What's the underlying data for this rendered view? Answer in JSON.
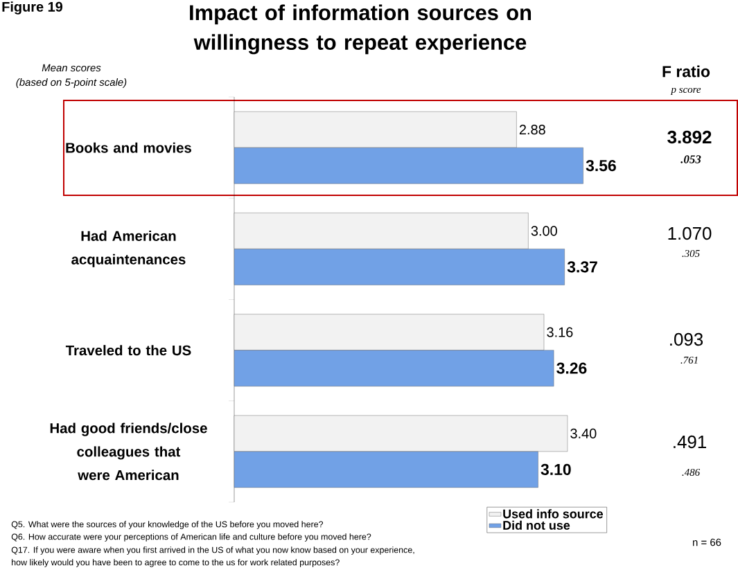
{
  "chart_data": {
    "type": "bar",
    "orientation": "horizontal",
    "title": "Impact of information sources on willingness to repeat experience",
    "categories": [
      "Books and movies",
      "Had American acquaintenances",
      "Traveled to the US",
      "Had good friends/close colleagues that were American"
    ],
    "series": [
      {
        "name": "Used info source",
        "color": "#f2f2f2",
        "values": [
          2.88,
          3.0,
          3.16,
          3.4
        ],
        "value_labels": [
          "2.88",
          "3.00",
          "3.16",
          "3.40"
        ]
      },
      {
        "name": "Did not use",
        "color": "#71a1e6",
        "values": [
          3.56,
          3.37,
          3.26,
          3.1
        ],
        "value_labels": [
          "3.56",
          "3.37",
          "3.26",
          "3.10"
        ]
      }
    ],
    "legend": "bottom",
    "annotations": [
      "Figure 19",
      "Mean scores",
      "(based on 5-point scale)",
      "F ratio",
      "p score",
      "3.892",
      ".053",
      "1.070",
      ".305",
      ".093",
      ".761",
      ".491",
      ".486",
      "Q5.  What were the sources of  your knowledge of the US before you moved here?",
      "Q6.  How accurate were your perceptions of American life and culture before you moved here?",
      "Q17.  If you were aware when  you first arrived in the US of what you now know based on your experience,",
      "how likely would you have been to agree to come to the us for work related purposes?",
      "n = 66"
    ]
  }
}
